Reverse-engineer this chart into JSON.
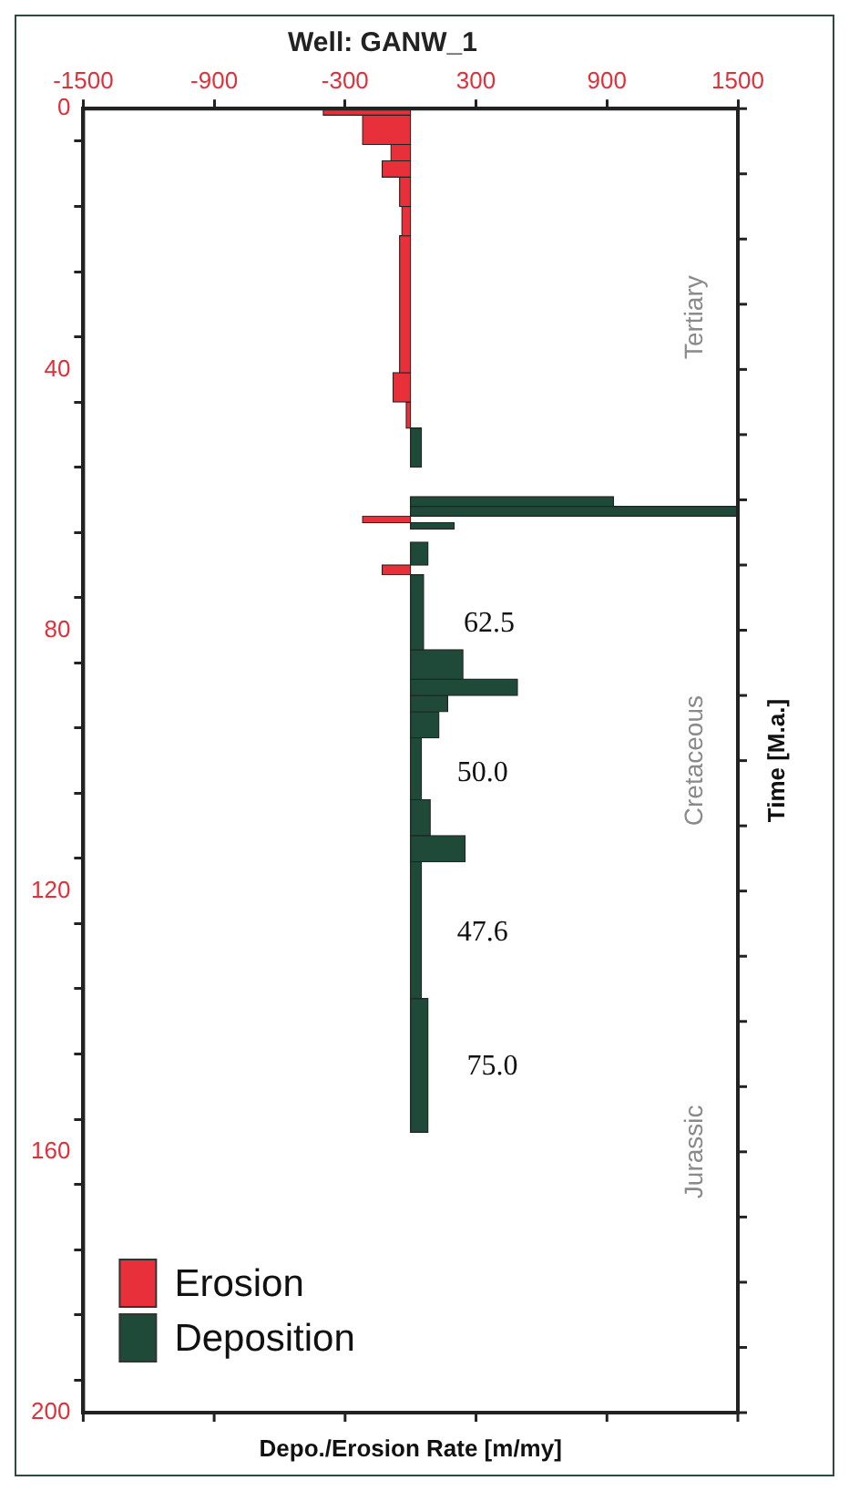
{
  "chart_data": {
    "type": "histogram",
    "orientation": "horizontal",
    "title": "Well: GANW_1",
    "xlabel": "Depo./Erosion Rate [m/my]",
    "ylabel": "Time [M.a.]",
    "bins": [
      0,
      1,
      5.5,
      8,
      10.5,
      15,
      19.5,
      40.5,
      45,
      49,
      55,
      59.5,
      61,
      62.5,
      63.5,
      64.5,
      66.5,
      70,
      71.5,
      83,
      87.5,
      90,
      92.5,
      96.5,
      106,
      111.5,
      115.5,
      136.5,
      157
    ],
    "series": [
      {
        "name": "Erosion",
        "color": "#e8303a",
        "values": [
          -400,
          -220,
          -90,
          -130,
          -50,
          -40,
          -50,
          -80,
          -20,
          null,
          null,
          null,
          null,
          -220,
          null,
          null,
          null,
          -130,
          null,
          null,
          null,
          null,
          null,
          null,
          null,
          null,
          null,
          null
        ]
      },
      {
        "name": "Deposition",
        "color": "#1f4a3a",
        "values": [
          null,
          null,
          null,
          null,
          null,
          null,
          null,
          null,
          null,
          50,
          null,
          930,
          1500,
          null,
          200,
          null,
          80,
          null,
          60,
          240,
          490,
          170,
          130,
          50,
          90,
          250,
          50,
          80
        ]
      }
    ],
    "xlim": [
      -1500,
      1500
    ],
    "xticks": [
      -1500,
      -900,
      -300,
      300,
      900,
      1500
    ],
    "ylim": [
      200,
      0
    ],
    "yticks": [
      0,
      {
        "value": 10,
        "label": null
      },
      {
        "value": 20,
        "label": null
      },
      {
        "value": 30,
        "label": null
      },
      40,
      {
        "value": 50,
        "label": null
      },
      {
        "value": 60,
        "label": null
      },
      {
        "value": 70,
        "label": null
      },
      80,
      {
        "value": 90,
        "label": null
      },
      {
        "value": 100,
        "label": null
      },
      {
        "value": 110,
        "label": null
      },
      120,
      {
        "value": 130,
        "label": null
      },
      {
        "value": 140,
        "label": null
      },
      {
        "value": 150,
        "label": null
      },
      160,
      {
        "value": 170,
        "label": null
      },
      {
        "value": 180,
        "label": null
      },
      {
        "value": 190,
        "label": null
      },
      200
    ],
    "annotations": [
      "62.5",
      "50.0",
      "47.6",
      "75.0",
      "Tertiary",
      "Cretaceous",
      "Jurassic"
    ],
    "legend": "bottom left",
    "grid": false
  }
}
